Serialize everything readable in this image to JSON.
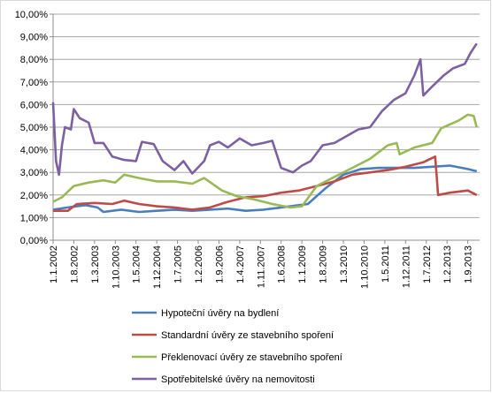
{
  "chart_data": {
    "type": "line",
    "title": "",
    "xlabel": "",
    "ylabel": "",
    "ylim": [
      0,
      10
    ],
    "y_ticks": [
      "0,00%",
      "1,00%",
      "2,00%",
      "3,00%",
      "4,00%",
      "5,00%",
      "6,00%",
      "7,00%",
      "8,00%",
      "9,00%",
      "10,00%"
    ],
    "x_ticks": [
      "1.1.2002",
      "1.8.2002",
      "1.3.2003",
      "1.10.2003",
      "1.5.2004",
      "1.12.2004",
      "1.7.2005",
      "1.2.2006",
      "1.9.2006",
      "1.4.2007",
      "1.11.2007",
      "1.6.2008",
      "1.1.2009",
      "1.8.2009",
      "1.3.2010",
      "1.10.2010",
      "1.5.2011",
      "1.12.2011",
      "1.7.2012",
      "1.2.2013",
      "1.9.2013"
    ],
    "x_range": [
      "2002-01",
      "2014-01"
    ],
    "grid": "horizontal",
    "legend": "bottom",
    "series": [
      {
        "name": "Hypoteční úvěry na bydlení",
        "color": "#4a7ebb",
        "points": [
          [
            "2002-01",
            1.35
          ],
          [
            "2002-06",
            1.45
          ],
          [
            "2002-12",
            1.55
          ],
          [
            "2003-04",
            1.45
          ],
          [
            "2003-06",
            1.25
          ],
          [
            "2003-12",
            1.35
          ],
          [
            "2004-06",
            1.25
          ],
          [
            "2004-12",
            1.3
          ],
          [
            "2005-06",
            1.35
          ],
          [
            "2005-12",
            1.3
          ],
          [
            "2006-06",
            1.35
          ],
          [
            "2006-12",
            1.4
          ],
          [
            "2007-06",
            1.3
          ],
          [
            "2007-12",
            1.35
          ],
          [
            "2008-06",
            1.45
          ],
          [
            "2008-12",
            1.55
          ],
          [
            "2009-03",
            1.6
          ],
          [
            "2009-09",
            2.3
          ],
          [
            "2010-03",
            2.9
          ],
          [
            "2010-09",
            3.15
          ],
          [
            "2011-03",
            3.2
          ],
          [
            "2011-09",
            3.2
          ],
          [
            "2012-03",
            3.2
          ],
          [
            "2012-09",
            3.25
          ],
          [
            "2013-03",
            3.3
          ],
          [
            "2013-09",
            3.15
          ],
          [
            "2013-12",
            3.05
          ]
        ]
      },
      {
        "name": "Standardní úvěry ze stavebního spoření",
        "color": "#be4b48",
        "points": [
          [
            "2002-01",
            1.3
          ],
          [
            "2002-06",
            1.3
          ],
          [
            "2002-09",
            1.6
          ],
          [
            "2003-03",
            1.65
          ],
          [
            "2003-09",
            1.6
          ],
          [
            "2004-01",
            1.75
          ],
          [
            "2004-06",
            1.6
          ],
          [
            "2004-12",
            1.5
          ],
          [
            "2005-06",
            1.45
          ],
          [
            "2005-12",
            1.35
          ],
          [
            "2006-06",
            1.45
          ],
          [
            "2006-12",
            1.7
          ],
          [
            "2007-06",
            1.9
          ],
          [
            "2007-12",
            1.95
          ],
          [
            "2008-06",
            2.1
          ],
          [
            "2008-12",
            2.2
          ],
          [
            "2009-06",
            2.4
          ],
          [
            "2009-12",
            2.6
          ],
          [
            "2010-06",
            2.9
          ],
          [
            "2010-12",
            3.0
          ],
          [
            "2011-06",
            3.1
          ],
          [
            "2011-12",
            3.25
          ],
          [
            "2012-06",
            3.45
          ],
          [
            "2012-10",
            3.7
          ],
          [
            "2012-11",
            2.0
          ],
          [
            "2013-03",
            2.1
          ],
          [
            "2013-09",
            2.2
          ],
          [
            "2013-12",
            2.0
          ]
        ]
      },
      {
        "name": "Překlenovací úvěry ze stavebního spoření",
        "color": "#98b954",
        "points": [
          [
            "2002-01",
            1.7
          ],
          [
            "2002-04",
            1.9
          ],
          [
            "2002-08",
            2.4
          ],
          [
            "2003-01",
            2.55
          ],
          [
            "2003-06",
            2.65
          ],
          [
            "2003-10",
            2.55
          ],
          [
            "2004-01",
            2.9
          ],
          [
            "2004-06",
            2.75
          ],
          [
            "2004-12",
            2.6
          ],
          [
            "2005-06",
            2.6
          ],
          [
            "2005-12",
            2.5
          ],
          [
            "2006-04",
            2.75
          ],
          [
            "2006-10",
            2.2
          ],
          [
            "2007-03",
            1.95
          ],
          [
            "2007-09",
            1.8
          ],
          [
            "2008-03",
            1.6
          ],
          [
            "2008-09",
            1.45
          ],
          [
            "2009-01",
            1.5
          ],
          [
            "2009-06",
            2.4
          ],
          [
            "2009-12",
            2.8
          ],
          [
            "2010-06",
            3.2
          ],
          [
            "2010-12",
            3.6
          ],
          [
            "2011-06",
            4.2
          ],
          [
            "2011-09",
            4.3
          ],
          [
            "2011-10",
            3.8
          ],
          [
            "2012-03",
            4.1
          ],
          [
            "2012-09",
            4.3
          ],
          [
            "2012-12",
            4.95
          ],
          [
            "2013-06",
            5.3
          ],
          [
            "2013-09",
            5.55
          ],
          [
            "2013-11",
            5.5
          ],
          [
            "2013-12",
            5.0
          ]
        ]
      },
      {
        "name": "Spotřebitelské úvěry na nemovitosti",
        "color": "#7d60a0",
        "points": [
          [
            "2002-01",
            6.1
          ],
          [
            "2002-02",
            3.5
          ],
          [
            "2002-03",
            2.9
          ],
          [
            "2002-04",
            4.2
          ],
          [
            "2002-05",
            5.0
          ],
          [
            "2002-07",
            4.9
          ],
          [
            "2002-08",
            5.8
          ],
          [
            "2002-10",
            5.4
          ],
          [
            "2003-01",
            5.2
          ],
          [
            "2003-03",
            4.3
          ],
          [
            "2003-06",
            4.3
          ],
          [
            "2003-09",
            3.7
          ],
          [
            "2004-01",
            3.55
          ],
          [
            "2004-05",
            3.5
          ],
          [
            "2004-07",
            4.35
          ],
          [
            "2004-11",
            4.25
          ],
          [
            "2005-02",
            3.5
          ],
          [
            "2005-06",
            3.1
          ],
          [
            "2005-09",
            3.5
          ],
          [
            "2005-12",
            2.95
          ],
          [
            "2006-04",
            3.5
          ],
          [
            "2006-06",
            4.2
          ],
          [
            "2006-09",
            4.35
          ],
          [
            "2006-12",
            4.1
          ],
          [
            "2007-04",
            4.5
          ],
          [
            "2007-08",
            4.2
          ],
          [
            "2007-12",
            4.3
          ],
          [
            "2008-03",
            4.4
          ],
          [
            "2008-06",
            3.2
          ],
          [
            "2008-10",
            3.0
          ],
          [
            "2009-01",
            3.3
          ],
          [
            "2009-04",
            3.5
          ],
          [
            "2009-08",
            4.2
          ],
          [
            "2009-12",
            4.3
          ],
          [
            "2010-04",
            4.6
          ],
          [
            "2010-08",
            4.9
          ],
          [
            "2010-12",
            5.0
          ],
          [
            "2011-04",
            5.7
          ],
          [
            "2011-08",
            6.2
          ],
          [
            "2011-12",
            6.5
          ],
          [
            "2012-03",
            7.3
          ],
          [
            "2012-05",
            8.0
          ],
          [
            "2012-06",
            6.4
          ],
          [
            "2012-09",
            6.8
          ],
          [
            "2013-01",
            7.3
          ],
          [
            "2013-04",
            7.6
          ],
          [
            "2013-08",
            7.8
          ],
          [
            "2013-10",
            8.3
          ],
          [
            "2013-12",
            8.7
          ]
        ]
      }
    ]
  }
}
